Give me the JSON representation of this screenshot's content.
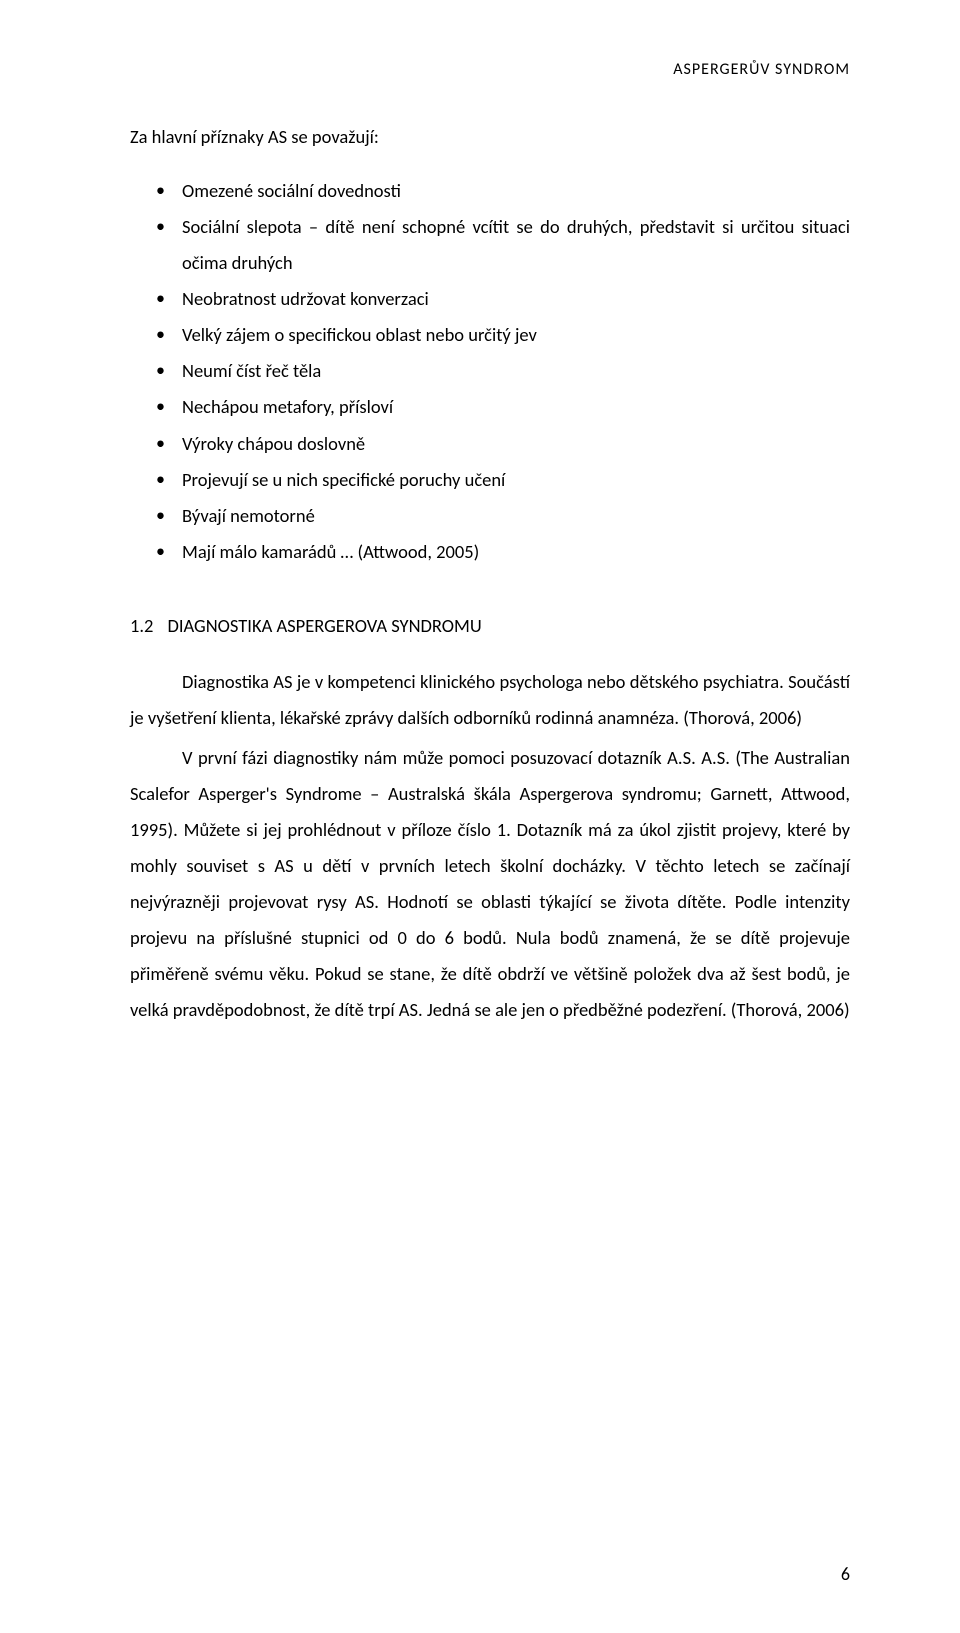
{
  "running_header": "ASPERGERŮV  SYNDROM",
  "intro_line": "Za hlavní příznaky AS se považují:",
  "bullets": [
    "Omezené sociální dovednosti",
    "Sociální slepota – dítě není schopné vcítit se do druhých, představit si určitou situaci očima druhých",
    "Neobratnost udržovat konverzaci",
    "Velký zájem o specifickou oblast nebo určitý jev",
    "Neumí číst řeč těla",
    "Nechápou metafory, přísloví",
    "Výroky chápou doslovně",
    "Projevují se u nich specifické poruchy učení",
    "Bývají nemotorné",
    "Mají málo kamarádů … (Attwood, 2005)"
  ],
  "section": {
    "number": "1.2",
    "title": "DIAGNOSTIKA ASPERGEROVA SYNDROMU"
  },
  "paragraphs": [
    "Diagnostika AS je v kompetenci klinického psychologa nebo dětského psychiatra. Součástí je vyšetření klienta, lékařské zprávy dalších odborníků rodinná anamnéza. (Thorová, 2006)",
    "V první fázi diagnostiky nám může pomoci posuzovací dotazník A.S. A.S. (The Australian Scalefor Asperger's Syndrome – Australská škála Aspergerova syndromu; Garnett, Attwood, 1995). Můžete si jej prohlédnout v příloze číslo 1. Dotazník má za úkol zjistit projevy, které by mohly souviset s AS u dětí v prvních letech školní docházky. V těchto letech se začínají nejvýrazněji projevovat rysy AS. Hodnotí se oblasti týkající se života dítěte. Podle intenzity projevu na příslušné stupnici od 0 do 6 bodů. Nula bodů znamená, že se dítě projevuje přiměřeně svému věku. Pokud se stane, že dítě obdrží ve většině položek dva až šest bodů, je velká pravděpodobnost, že dítě trpí AS. Jedná se ale jen o předběžné podezření. (Thorová, 2006)"
  ],
  "page_number": "6"
}
